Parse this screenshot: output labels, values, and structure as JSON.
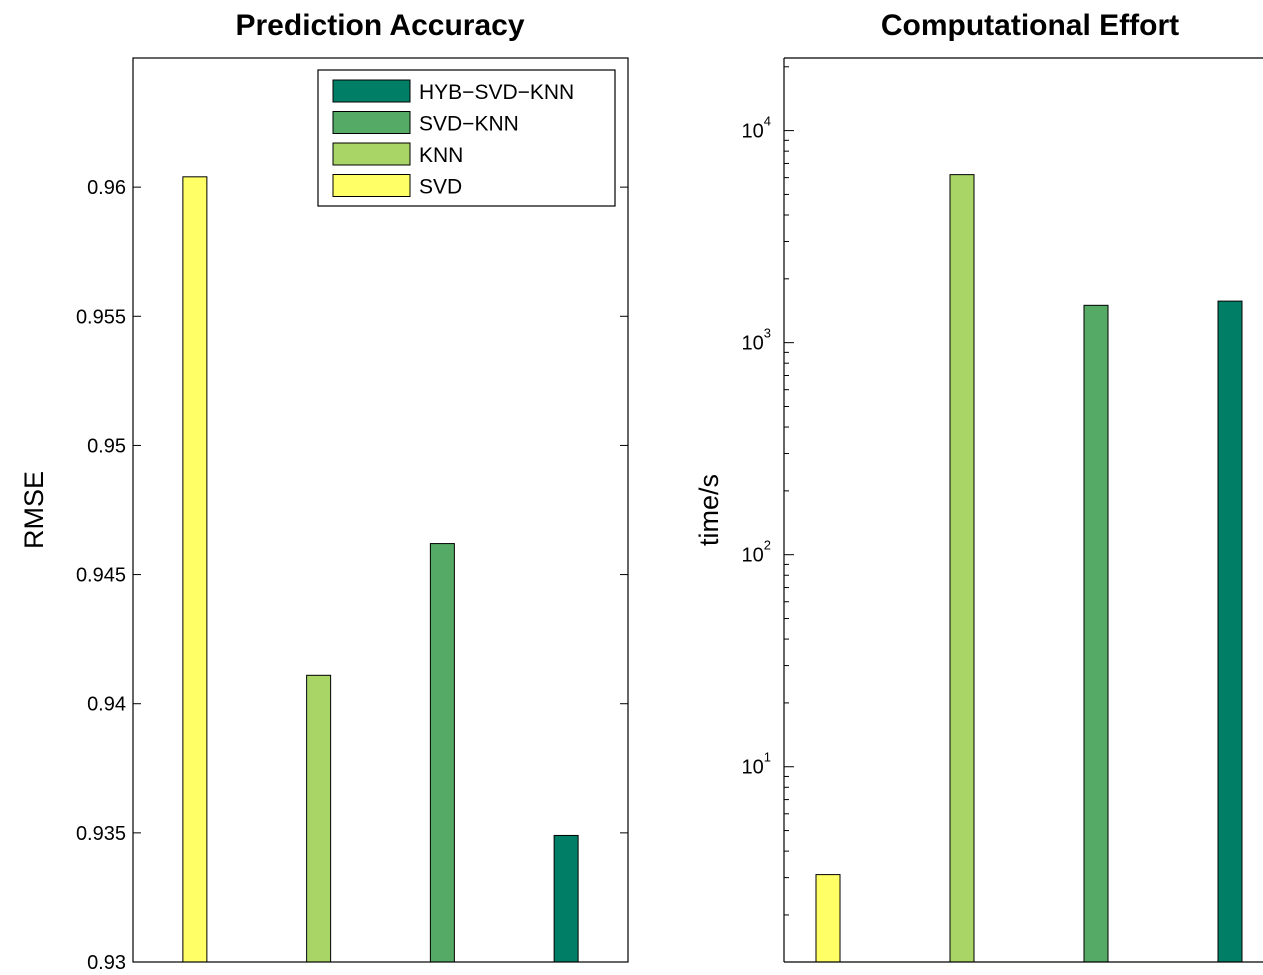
{
  "chart_data": [
    {
      "type": "bar",
      "title": "Prediction Accuracy",
      "xlabel": "",
      "ylabel": "RMSE",
      "yscale": "linear",
      "ylim": [
        0.93,
        0.965
      ],
      "yticks": [
        "0.93",
        "0.935",
        "0.94",
        "0.945",
        "0.95",
        "0.955",
        "0.96"
      ],
      "grid": false,
      "legend_position": "top-right",
      "legend": [
        "HYB-SVD-KNN",
        "SVD-KNN",
        "KNN",
        "SVD"
      ],
      "series": [
        {
          "name": "SVD",
          "color": "#ffff66",
          "value": 0.9604
        },
        {
          "name": "KNN",
          "color": "#a9d466",
          "value": 0.9411
        },
        {
          "name": "SVD-KNN",
          "color": "#55aa66",
          "value": 0.9462
        },
        {
          "name": "HYB-SVD-KNN",
          "color": "#007f66",
          "value": 0.9349
        }
      ]
    },
    {
      "type": "bar",
      "title": "Computational Effort",
      "xlabel": "",
      "ylabel": "time/s",
      "yscale": "log",
      "ylim": [
        1.2,
        22000
      ],
      "yticks": [
        {
          "base": "10",
          "exp": "1",
          "value": 10
        },
        {
          "base": "10",
          "exp": "2",
          "value": 100
        },
        {
          "base": "10",
          "exp": "3",
          "value": 1000
        },
        {
          "base": "10",
          "exp": "4",
          "value": 10000
        }
      ],
      "grid": false,
      "series": [
        {
          "name": "SVD",
          "color": "#ffff66",
          "value": 3.1
        },
        {
          "name": "KNN",
          "color": "#a9d466",
          "value": 6200
        },
        {
          "name": "SVD-KNN",
          "color": "#55aa66",
          "value": 1500
        },
        {
          "name": "HYB-SVD-KNN",
          "color": "#007f66",
          "value": 1570
        }
      ]
    }
  ]
}
